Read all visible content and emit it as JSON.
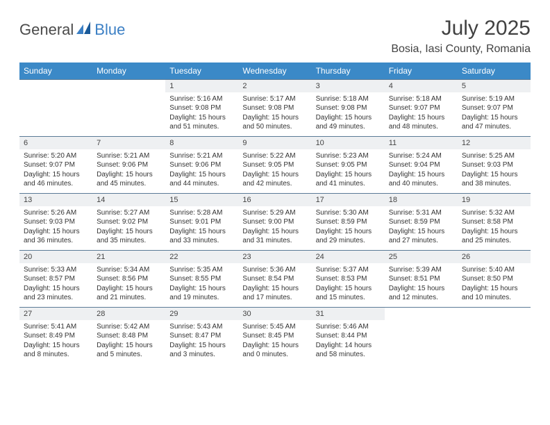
{
  "logo": {
    "part1": "General",
    "part2": "Blue"
  },
  "title": "July 2025",
  "location": "Bosia, Iasi County, Romania",
  "headers": [
    "Sunday",
    "Monday",
    "Tuesday",
    "Wednesday",
    "Thursday",
    "Friday",
    "Saturday"
  ],
  "colors": {
    "header_bg": "#3b89c7",
    "header_text": "#ffffff",
    "daynum_bg": "#eef0f2",
    "rule": "#5a7a96",
    "logo_blue": "#3b7fc4",
    "logo_dark": "#1a5a99"
  },
  "weeks": [
    [
      null,
      null,
      {
        "n": "1",
        "sr": "Sunrise: 5:16 AM",
        "ss": "Sunset: 9:08 PM",
        "dl": "Daylight: 15 hours and 51 minutes."
      },
      {
        "n": "2",
        "sr": "Sunrise: 5:17 AM",
        "ss": "Sunset: 9:08 PM",
        "dl": "Daylight: 15 hours and 50 minutes."
      },
      {
        "n": "3",
        "sr": "Sunrise: 5:18 AM",
        "ss": "Sunset: 9:08 PM",
        "dl": "Daylight: 15 hours and 49 minutes."
      },
      {
        "n": "4",
        "sr": "Sunrise: 5:18 AM",
        "ss": "Sunset: 9:07 PM",
        "dl": "Daylight: 15 hours and 48 minutes."
      },
      {
        "n": "5",
        "sr": "Sunrise: 5:19 AM",
        "ss": "Sunset: 9:07 PM",
        "dl": "Daylight: 15 hours and 47 minutes."
      }
    ],
    [
      {
        "n": "6",
        "sr": "Sunrise: 5:20 AM",
        "ss": "Sunset: 9:07 PM",
        "dl": "Daylight: 15 hours and 46 minutes."
      },
      {
        "n": "7",
        "sr": "Sunrise: 5:21 AM",
        "ss": "Sunset: 9:06 PM",
        "dl": "Daylight: 15 hours and 45 minutes."
      },
      {
        "n": "8",
        "sr": "Sunrise: 5:21 AM",
        "ss": "Sunset: 9:06 PM",
        "dl": "Daylight: 15 hours and 44 minutes."
      },
      {
        "n": "9",
        "sr": "Sunrise: 5:22 AM",
        "ss": "Sunset: 9:05 PM",
        "dl": "Daylight: 15 hours and 42 minutes."
      },
      {
        "n": "10",
        "sr": "Sunrise: 5:23 AM",
        "ss": "Sunset: 9:05 PM",
        "dl": "Daylight: 15 hours and 41 minutes."
      },
      {
        "n": "11",
        "sr": "Sunrise: 5:24 AM",
        "ss": "Sunset: 9:04 PM",
        "dl": "Daylight: 15 hours and 40 minutes."
      },
      {
        "n": "12",
        "sr": "Sunrise: 5:25 AM",
        "ss": "Sunset: 9:03 PM",
        "dl": "Daylight: 15 hours and 38 minutes."
      }
    ],
    [
      {
        "n": "13",
        "sr": "Sunrise: 5:26 AM",
        "ss": "Sunset: 9:03 PM",
        "dl": "Daylight: 15 hours and 36 minutes."
      },
      {
        "n": "14",
        "sr": "Sunrise: 5:27 AM",
        "ss": "Sunset: 9:02 PM",
        "dl": "Daylight: 15 hours and 35 minutes."
      },
      {
        "n": "15",
        "sr": "Sunrise: 5:28 AM",
        "ss": "Sunset: 9:01 PM",
        "dl": "Daylight: 15 hours and 33 minutes."
      },
      {
        "n": "16",
        "sr": "Sunrise: 5:29 AM",
        "ss": "Sunset: 9:00 PM",
        "dl": "Daylight: 15 hours and 31 minutes."
      },
      {
        "n": "17",
        "sr": "Sunrise: 5:30 AM",
        "ss": "Sunset: 8:59 PM",
        "dl": "Daylight: 15 hours and 29 minutes."
      },
      {
        "n": "18",
        "sr": "Sunrise: 5:31 AM",
        "ss": "Sunset: 8:59 PM",
        "dl": "Daylight: 15 hours and 27 minutes."
      },
      {
        "n": "19",
        "sr": "Sunrise: 5:32 AM",
        "ss": "Sunset: 8:58 PM",
        "dl": "Daylight: 15 hours and 25 minutes."
      }
    ],
    [
      {
        "n": "20",
        "sr": "Sunrise: 5:33 AM",
        "ss": "Sunset: 8:57 PM",
        "dl": "Daylight: 15 hours and 23 minutes."
      },
      {
        "n": "21",
        "sr": "Sunrise: 5:34 AM",
        "ss": "Sunset: 8:56 PM",
        "dl": "Daylight: 15 hours and 21 minutes."
      },
      {
        "n": "22",
        "sr": "Sunrise: 5:35 AM",
        "ss": "Sunset: 8:55 PM",
        "dl": "Daylight: 15 hours and 19 minutes."
      },
      {
        "n": "23",
        "sr": "Sunrise: 5:36 AM",
        "ss": "Sunset: 8:54 PM",
        "dl": "Daylight: 15 hours and 17 minutes."
      },
      {
        "n": "24",
        "sr": "Sunrise: 5:37 AM",
        "ss": "Sunset: 8:53 PM",
        "dl": "Daylight: 15 hours and 15 minutes."
      },
      {
        "n": "25",
        "sr": "Sunrise: 5:39 AM",
        "ss": "Sunset: 8:51 PM",
        "dl": "Daylight: 15 hours and 12 minutes."
      },
      {
        "n": "26",
        "sr": "Sunrise: 5:40 AM",
        "ss": "Sunset: 8:50 PM",
        "dl": "Daylight: 15 hours and 10 minutes."
      }
    ],
    [
      {
        "n": "27",
        "sr": "Sunrise: 5:41 AM",
        "ss": "Sunset: 8:49 PM",
        "dl": "Daylight: 15 hours and 8 minutes."
      },
      {
        "n": "28",
        "sr": "Sunrise: 5:42 AM",
        "ss": "Sunset: 8:48 PM",
        "dl": "Daylight: 15 hours and 5 minutes."
      },
      {
        "n": "29",
        "sr": "Sunrise: 5:43 AM",
        "ss": "Sunset: 8:47 PM",
        "dl": "Daylight: 15 hours and 3 minutes."
      },
      {
        "n": "30",
        "sr": "Sunrise: 5:45 AM",
        "ss": "Sunset: 8:45 PM",
        "dl": "Daylight: 15 hours and 0 minutes."
      },
      {
        "n": "31",
        "sr": "Sunrise: 5:46 AM",
        "ss": "Sunset: 8:44 PM",
        "dl": "Daylight: 14 hours and 58 minutes."
      },
      null,
      null
    ]
  ]
}
